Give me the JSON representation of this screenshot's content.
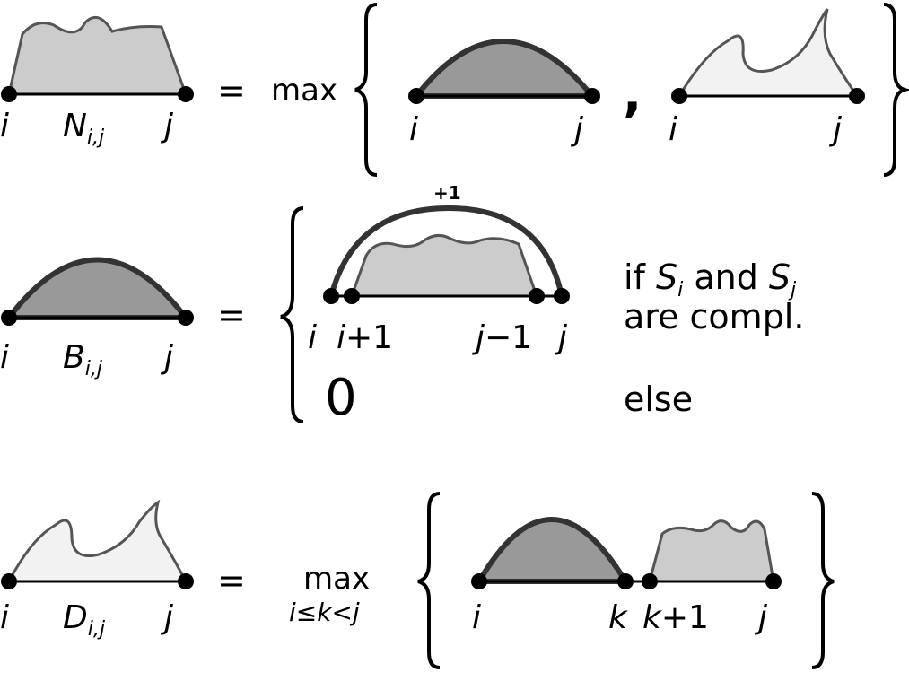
{
  "rows": [
    {
      "lhs": {
        "i": "i",
        "j": "j",
        "sym": "N",
        "sub": "i,j"
      },
      "eq": "=",
      "op": "max",
      "rhs": {
        "left_i": "i",
        "left_j": "j",
        "comma": ",",
        "right_i": "i",
        "right_j": "j"
      }
    },
    {
      "lhs": {
        "i": "i",
        "j": "j",
        "sym": "B",
        "sub": "i,j"
      },
      "eq": "=",
      "arc_label": "+1",
      "labels": {
        "i": "i",
        "i1_a": "i",
        "i1_b": "+1",
        "j1_a": "j",
        "j1_b": "−1",
        "j": "j"
      },
      "cond1_a": "if ",
      "cond1_S1": "S",
      "cond1_s1": "i",
      "cond1_and": " and ",
      "cond1_S2": "S",
      "cond1_s2": "j",
      "cond1_line2": "are compl.",
      "zero": "0",
      "else": "else"
    },
    {
      "lhs": {
        "i": "i",
        "j": "j",
        "sym": "D",
        "sub": "i,j"
      },
      "eq": "=",
      "op": "max",
      "op_sub": "i≤k<j",
      "rhs": {
        "i": "i",
        "k": "k",
        "k1_a": "k",
        "k1_b": "+1",
        "j": "j"
      }
    }
  ],
  "colors": {
    "light": "#cccccc",
    "lighter": "#f2f2f2",
    "dark": "#999999",
    "stroke": "#555555",
    "arc": "#333333"
  }
}
